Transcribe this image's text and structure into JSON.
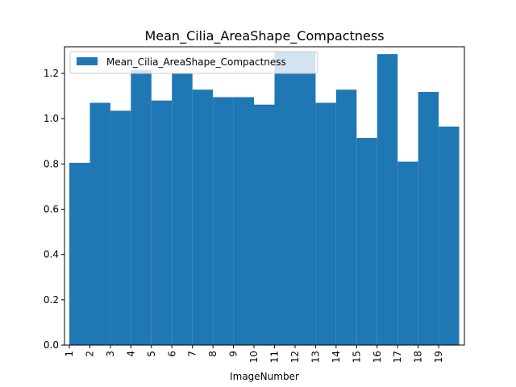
{
  "chart_data": {
    "type": "bar",
    "title": "Mean_Cilia_AreaShape_Compactness",
    "xlabel": "ImageNumber",
    "ylabel": "",
    "categories": [
      "1",
      "2",
      "3",
      "4",
      "5",
      "6",
      "7",
      "8",
      "9",
      "10",
      "11",
      "12",
      "13",
      "14",
      "15",
      "16",
      "17",
      "18",
      "19"
    ],
    "series": [
      {
        "name": "Mean_Cilia_AreaShape_Compactness",
        "color": "#1f77b4",
        "values": [
          0.805,
          1.07,
          1.035,
          1.215,
          1.08,
          1.2,
          1.128,
          1.095,
          1.095,
          1.062,
          1.295,
          1.295,
          1.07,
          1.128,
          0.915,
          1.285,
          0.81,
          1.118,
          0.965
        ]
      }
    ],
    "yticks": [
      "0.0",
      "0.2",
      "0.4",
      "0.6",
      "0.8",
      "1.0",
      "1.2"
    ],
    "ylim": [
      0,
      1.3175
    ],
    "grid": false,
    "legend_position": "top-left"
  }
}
